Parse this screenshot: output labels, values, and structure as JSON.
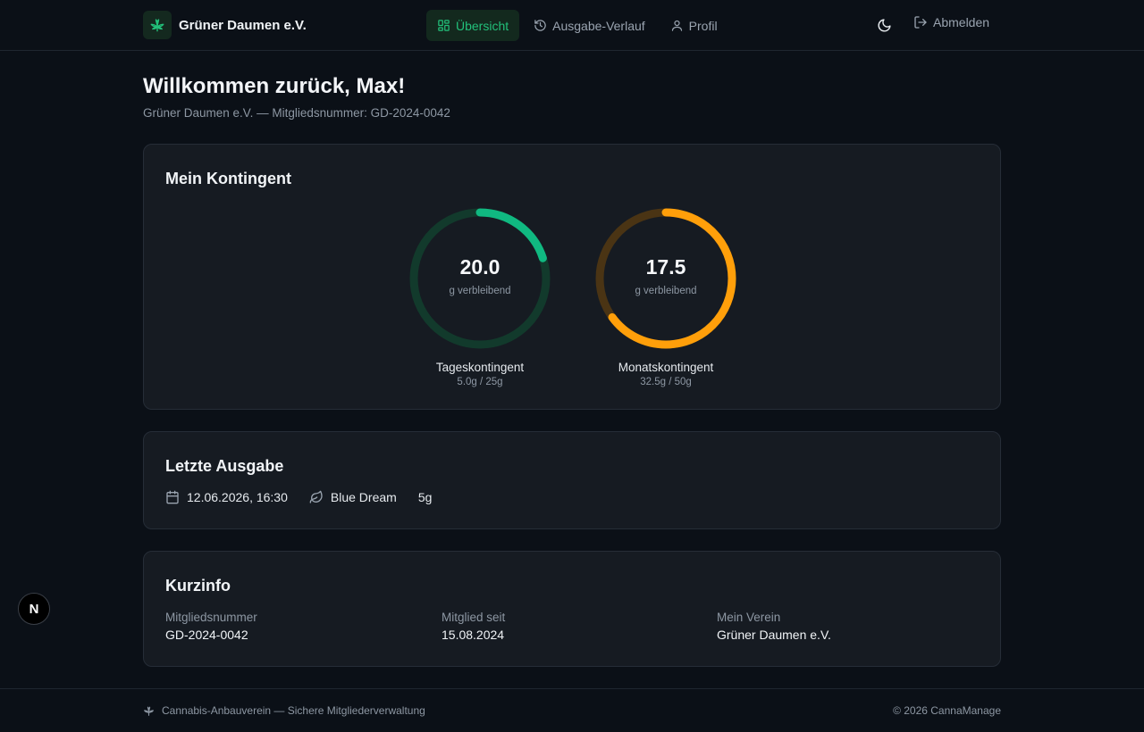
{
  "brand": {
    "name": "Grüner Daumen e.V.",
    "logo_icon": "leaf-icon"
  },
  "nav": {
    "items": [
      {
        "label": "Übersicht",
        "icon": "grid-icon",
        "active": true
      },
      {
        "label": "Ausgabe-Verlauf",
        "icon": "history-icon",
        "active": false
      },
      {
        "label": "Profil",
        "icon": "user-icon",
        "active": false
      }
    ],
    "theme_toggle_icon": "moon-icon",
    "logout_label": "Abmelden"
  },
  "greeting": "Willkommen zurück, Max!",
  "subtitle": "Grüner Daumen e.V. — Mitgliedsnummer: GD-2024-0042",
  "quota": {
    "title": "Mein Kontingent",
    "rings": [
      {
        "value": "20.0",
        "unit": "g verbleibend",
        "label": "Tageskontingent",
        "sub": "5.0g / 25g",
        "used_fraction": 0.2,
        "color": "#10b981",
        "track": "#123a2c"
      },
      {
        "value": "17.5",
        "unit": "g verbleibend",
        "label": "Monatskontingent",
        "sub": "32.5g / 50g",
        "used_fraction": 0.65,
        "color": "#ff9f0a",
        "track": "#4a3414"
      }
    ]
  },
  "last_dispense": {
    "title": "Letzte Ausgabe",
    "datetime": "12.06.2026, 16:30",
    "strain": "Blue Dream",
    "amount": "5g"
  },
  "info": {
    "title": "Kurzinfo",
    "fields": [
      {
        "label": "Mitgliedsnummer",
        "value": "GD-2024-0042"
      },
      {
        "label": "Mitglied seit",
        "value": "15.08.2024"
      },
      {
        "label": "Mein Verein",
        "value": "Grüner Daumen e.V."
      }
    ]
  },
  "badge": "N",
  "footer": {
    "left": "Cannabis-Anbauverein — Sichere Mitgliederverwaltung",
    "right": "© 2026 CannaManage"
  }
}
